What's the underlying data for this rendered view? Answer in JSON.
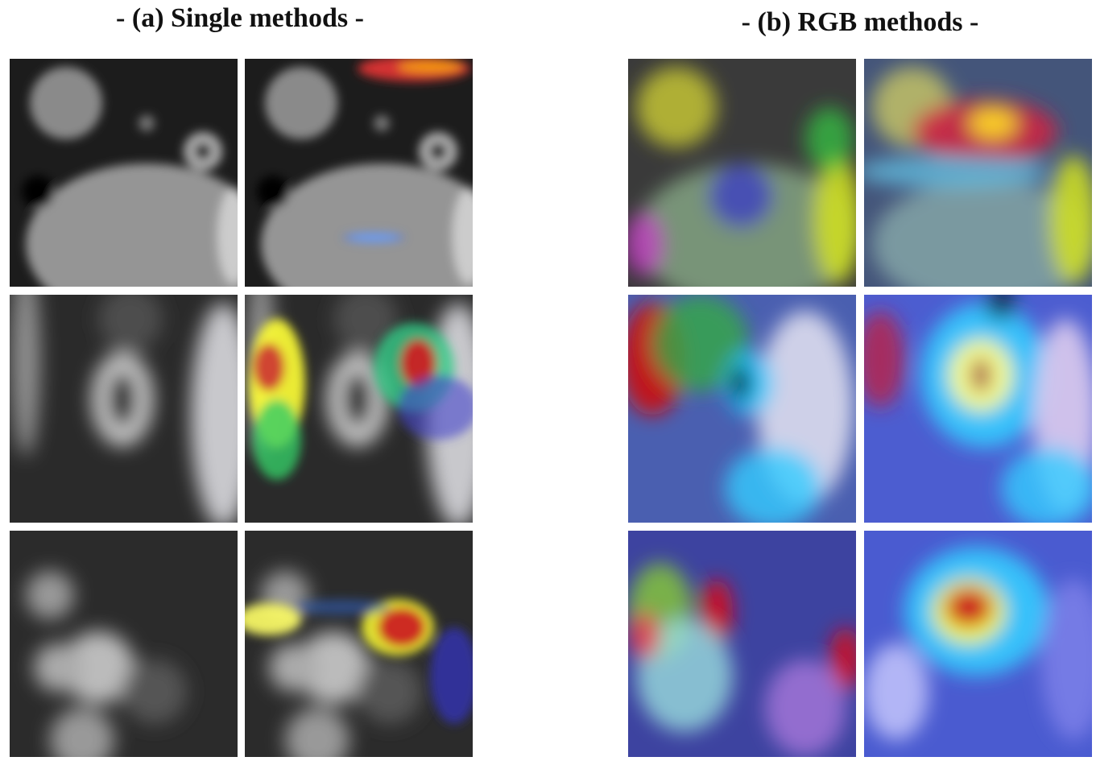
{
  "panels": {
    "a": {
      "title": "- (a) Single methods -"
    },
    "b": {
      "title": "- (b) RGB methods -"
    }
  }
}
